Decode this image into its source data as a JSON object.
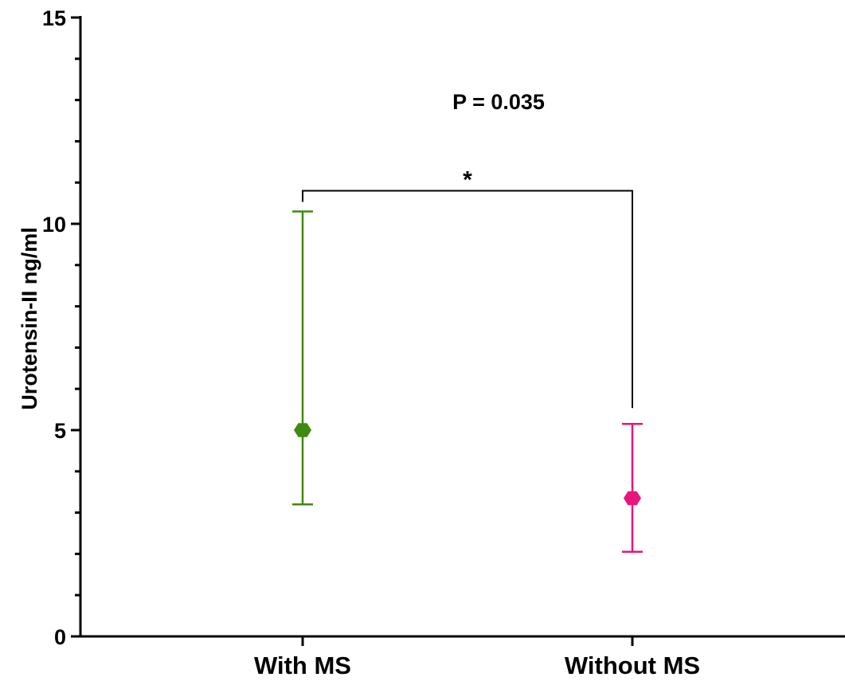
{
  "chart_data": {
    "type": "scatter",
    "title": "",
    "xlabel": "",
    "ylabel": "Urotensin-II ng/ml",
    "ylim": [
      0,
      15
    ],
    "yticks": [
      0,
      5,
      10,
      15
    ],
    "grid": false,
    "legend": "none",
    "categories": [
      "With MS",
      "Without MS"
    ],
    "series": [
      {
        "category": "With MS",
        "value": 5.0,
        "error_low": 3.2,
        "error_high": 10.3,
        "color": "#3f8a10",
        "marker": "hexagon"
      },
      {
        "category": "Without MS",
        "value": 3.35,
        "error_low": 2.05,
        "error_high": 5.15,
        "color": "#e8157f",
        "marker": "hexagon"
      }
    ],
    "annotations": {
      "p_value": "P = 0.035",
      "significance": "*",
      "bracket_y": 10.8
    }
  }
}
